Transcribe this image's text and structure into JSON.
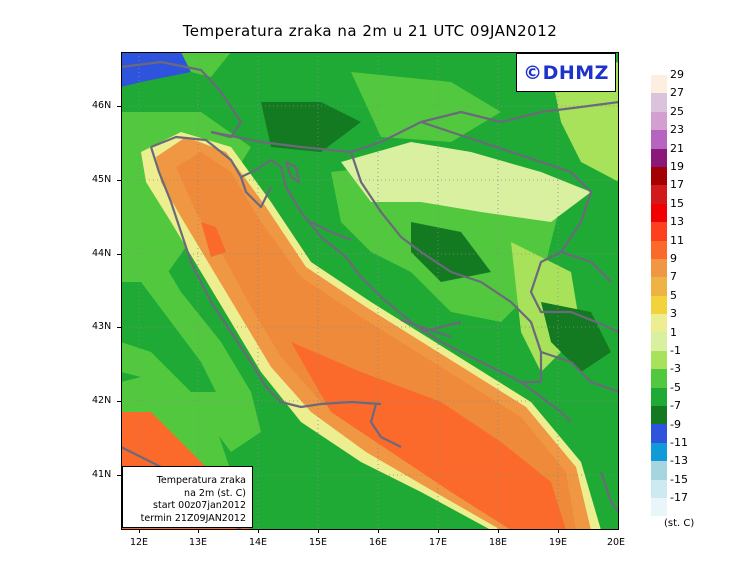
{
  "title": "Temperatura zraka na 2m u 21 UTC 09JAN2012",
  "logo": "©DHMZ",
  "info_box": {
    "line1": "Temperatura zraka",
    "line2": "na 2m (st. C)",
    "line3": "start 00z07jan2012",
    "line4": "termin 21Z09JAN2012"
  },
  "lat_labels": [
    "46N",
    "45N",
    "44N",
    "43N",
    "42N",
    "41N"
  ],
  "lon_labels": [
    "12E",
    "13E",
    "14E",
    "15E",
    "16E",
    "17E",
    "18E",
    "19E",
    "20E"
  ],
  "legend": {
    "labels": [
      "29",
      "27",
      "25",
      "23",
      "21",
      "19",
      "17",
      "15",
      "13",
      "11",
      "9",
      "7",
      "5",
      "3",
      "1",
      "-1",
      "-3",
      "-5",
      "-7",
      "-9",
      "-11",
      "-13",
      "-15",
      "-17"
    ],
    "unit": "(st. C)",
    "colors": [
      "#fdeee0",
      "#dcc3dc",
      "#d39fd1",
      "#b664c0",
      "#8a177a",
      "#a50000",
      "#d21a1a",
      "#f00000",
      "#fe3f1e",
      "#fb6a2a",
      "#f09743",
      "#efb343",
      "#f2d33b",
      "#ecee8f",
      "#d8f0a0",
      "#a8e25a",
      "#52c83e",
      "#1faa36",
      "#147a22",
      "#2e53dc",
      "#0e9bd8",
      "#a6d5e0",
      "#cde9f2",
      "#e8f6fa"
    ]
  }
}
